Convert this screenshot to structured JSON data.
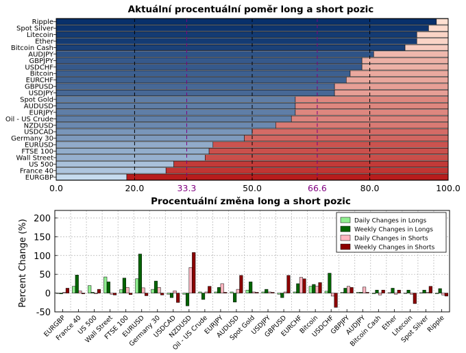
{
  "charts": {
    "top": {
      "title": "Aktuální procentuální poměr long a short pozic",
      "type": "bar",
      "orientation": "horizontal-stacked",
      "categories": [
        "Ripple",
        "Spot Silver",
        "Litecoin",
        "Ether",
        "Bitcoin Cash",
        "AUDJPY",
        "GBPJPY",
        "USDCHF",
        "Bitcoin",
        "EURCHF",
        "GBPUSD",
        "USDJPY",
        "Spot Gold",
        "AUDUSD",
        "EURJPY",
        "Oil - US Crude",
        "NZDUSD",
        "USDCAD",
        "Germany 30",
        "EURUSD",
        "FTSE 100",
        "Wall Street",
        "US 500",
        "France 40",
        "EURGBP"
      ],
      "long_percent": [
        97,
        95,
        92,
        92,
        89,
        81,
        78,
        78,
        75,
        74,
        71,
        71,
        61,
        61,
        61,
        60,
        56,
        50,
        48,
        40,
        39,
        38,
        30,
        28,
        18
      ],
      "xlim": [
        0,
        100
      ],
      "xticks": [
        "0.0",
        "20.0",
        "33.3",
        "50.0",
        "66.6",
        "80.0",
        "100.0"
      ],
      "xtick_values": [
        0,
        20,
        33.3,
        50,
        66.6,
        80,
        100
      ],
      "highlight_ticks": [
        "33.3",
        "66.6"
      ],
      "highlight_color": "#800080",
      "long_colors": {
        "high": "#08306b",
        "low": "#c6dbef"
      },
      "short_colors": {
        "low": "#fee0d2",
        "high": "#b71c1c"
      }
    },
    "bottom": {
      "title": "Procentuální změna long a short pozic",
      "type": "bar",
      "ylabel": "Percent Change (%)",
      "ylim": [
        -50,
        220
      ],
      "yticks": [
        "-50",
        "0",
        "50",
        "100",
        "150",
        "200"
      ],
      "ytick_values": [
        -50,
        0,
        50,
        100,
        150,
        200
      ],
      "categories": [
        "EURGBP",
        "France 40",
        "US 500",
        "Wall Street",
        "FTSE 100",
        "EURUSD",
        "Germany 30",
        "USDCAD",
        "NZDUSD",
        "Oil - US Crude",
        "EURJPY",
        "AUDUSD",
        "Spot Gold",
        "USDJPY",
        "GBPUSD",
        "EURCHF",
        "Bitcoin",
        "USDCHF",
        "GBPJPY",
        "AUDJPY",
        "Bitcoin Cash",
        "Ether",
        "Litecoin",
        "Spot Silver",
        "Ripple"
      ],
      "legend": [
        "Daily Changes in Longs",
        "Weekly Changes in Longs",
        "Daily Changes in Shorts",
        "Weekly Changes in Shorts"
      ],
      "legend_position": "top-right",
      "colors": [
        "#90ee90",
        "#006400",
        "#ffb6c1",
        "#8b0000"
      ],
      "series": [
        {
          "name": "Daily Changes in Longs",
          "values": [
            -1,
            18,
            20,
            43,
            9,
            38,
            10,
            -3,
            -3,
            3,
            3,
            3,
            8,
            3,
            -3,
            3,
            18,
            5,
            2,
            2,
            -2,
            1,
            0,
            1,
            -2
          ]
        },
        {
          "name": "Weekly Changes in Longs",
          "values": [
            -2,
            48,
            2,
            30,
            40,
            104,
            32,
            -12,
            -34,
            -17,
            15,
            -24,
            30,
            10,
            -12,
            25,
            23,
            53,
            13,
            2,
            8,
            13,
            8,
            8,
            12
          ]
        },
        {
          "name": "Daily Changes in Shorts",
          "values": [
            2,
            6,
            -2,
            -3,
            15,
            14,
            15,
            6,
            68,
            3,
            25,
            10,
            3,
            3,
            3,
            42,
            18,
            -8,
            18,
            16,
            -5,
            -3,
            -3,
            2,
            -5
          ]
        },
        {
          "name": "Weekly Changes in Shorts",
          "values": [
            13,
            -2,
            10,
            -5,
            -4,
            -7,
            -5,
            -25,
            108,
            18,
            2,
            47,
            2,
            2,
            47,
            38,
            28,
            -38,
            15,
            2,
            8,
            8,
            -28,
            18,
            -8
          ]
        }
      ]
    }
  }
}
